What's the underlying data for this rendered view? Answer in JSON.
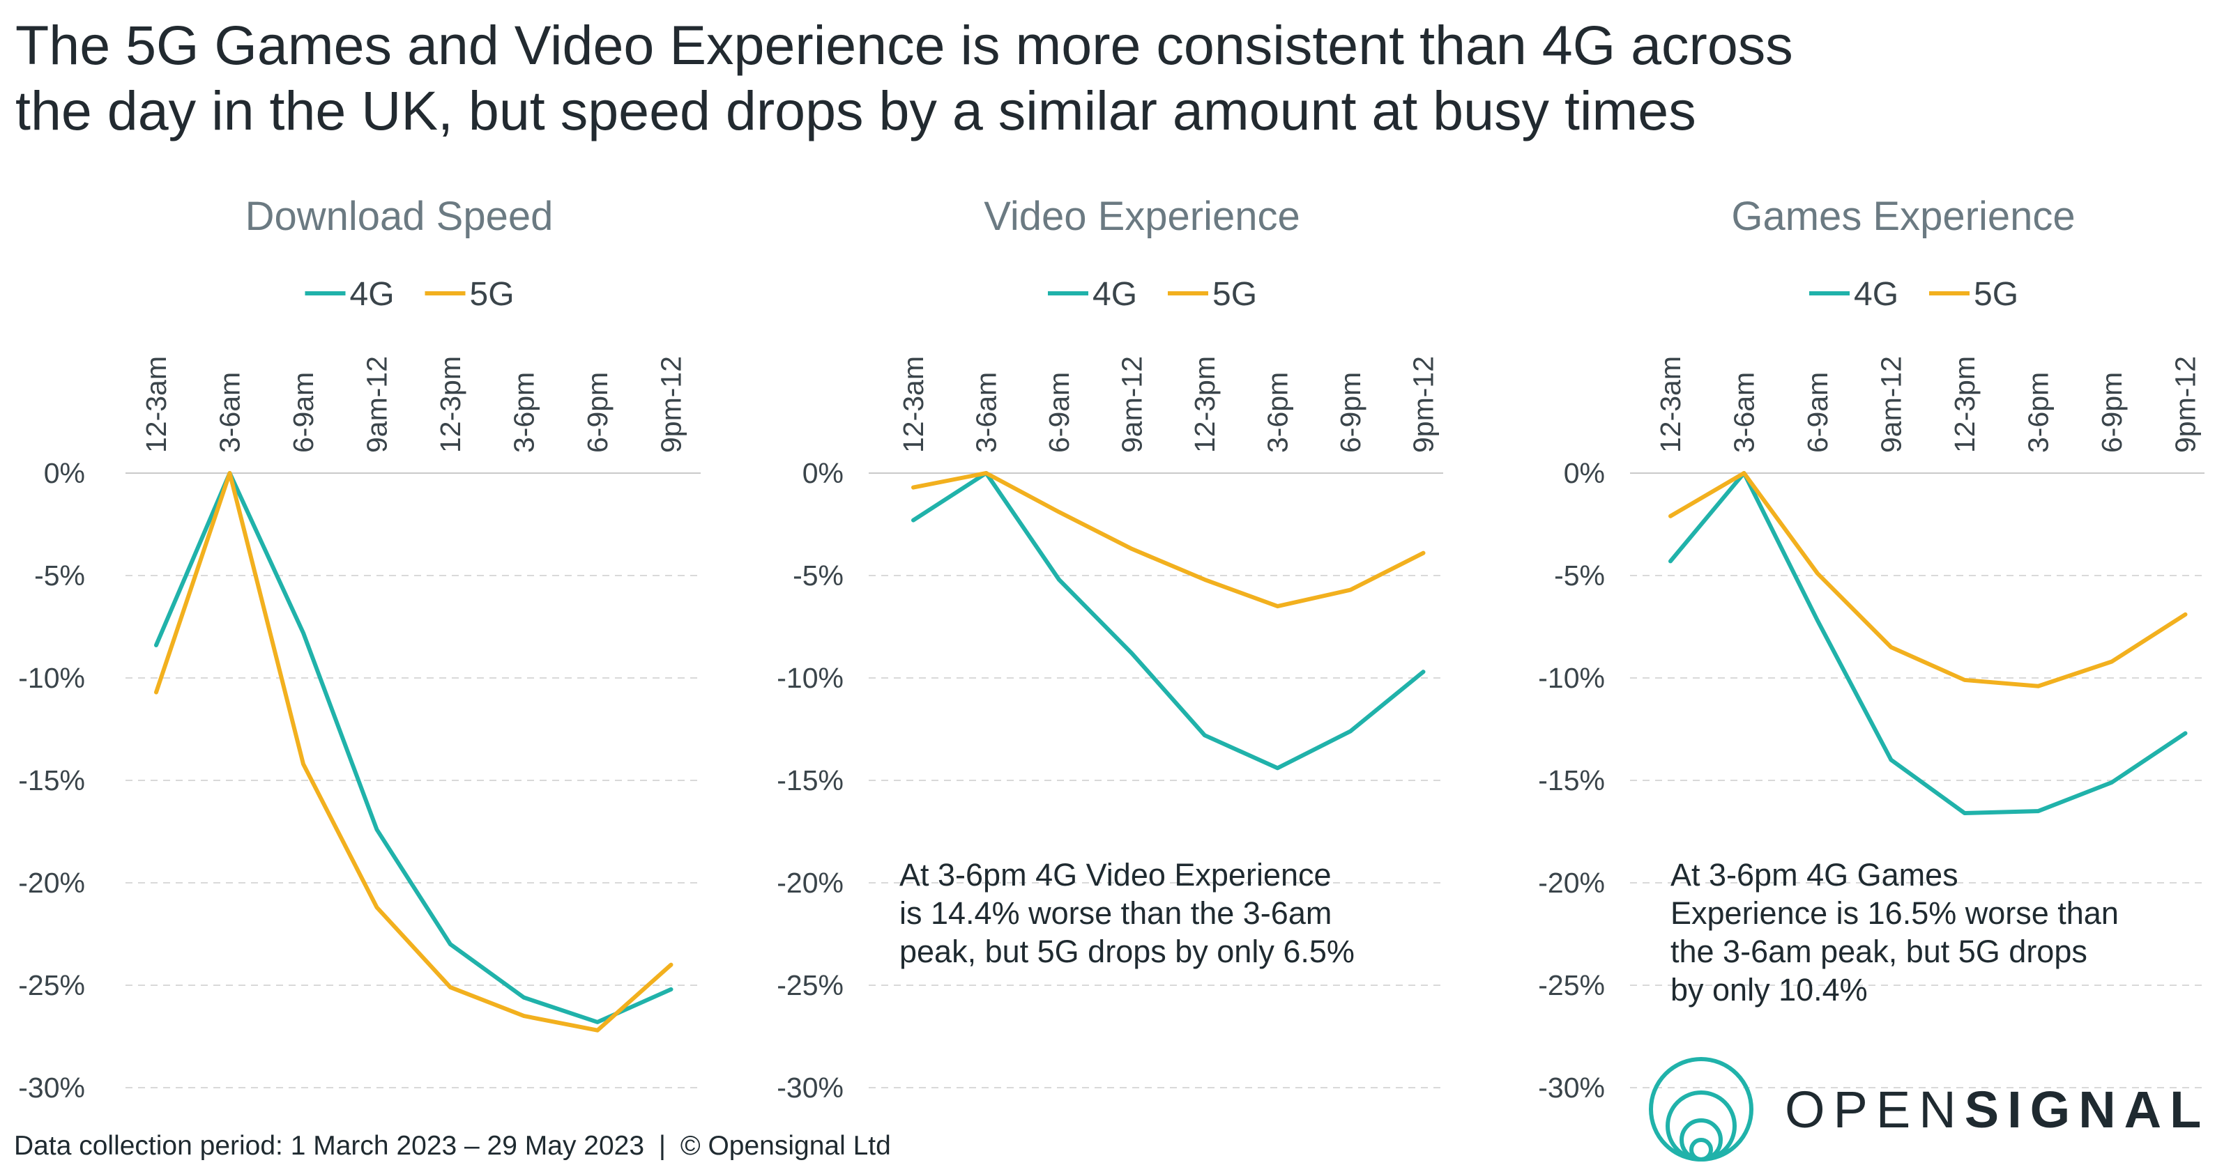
{
  "title_line1": "The 5G Games and Video Experience is more consistent than 4G across",
  "title_line2": "the day in the UK, but speed drops by a similar amount at busy times",
  "colors": {
    "4G": "#20b2aa",
    "5G": "#f2b01e",
    "grid": "#d9d9d9"
  },
  "annotations": {
    "video_lines": [
      "At 3-6pm 4G Video Experience",
      "is 14.4% worse than the 3-6am",
      "peak, but 5G drops by only 6.5%"
    ],
    "games_lines": [
      "At 3-6pm 4G Games",
      "Experience is 16.5% worse than",
      "the 3-6am peak, but 5G drops",
      "by only 10.4%"
    ]
  },
  "footer": {
    "period": "Data collection period: 1 March 2023 – 29 May 2023",
    "separator": "|",
    "copyright": "© Opensignal Ltd"
  },
  "brand": {
    "light": "OPEN",
    "bold": "SIGNAL"
  },
  "chart_data": [
    {
      "type": "line",
      "title": "Download Speed",
      "categories": [
        "12-3am",
        "3-6am",
        "6-9am",
        "9am-12",
        "12-3pm",
        "3-6pm",
        "6-9pm",
        "9pm-12"
      ],
      "series": [
        {
          "name": "4G",
          "values": [
            -8.4,
            0,
            -7.8,
            -17.4,
            -23.0,
            -25.6,
            -26.8,
            -25.2
          ]
        },
        {
          "name": "5G",
          "values": [
            -10.7,
            0,
            -14.2,
            -21.2,
            -25.1,
            -26.5,
            -27.2,
            -24.0
          ]
        }
      ],
      "ylim": [
        -30,
        0
      ],
      "yticks": [
        0,
        -5,
        -10,
        -15,
        -20,
        -25,
        -30
      ],
      "ytick_labels": [
        "0%",
        "-5%",
        "-10%",
        "-15%",
        "-20%",
        "-25%",
        "-30%"
      ],
      "legend": "top-center",
      "grid": true
    },
    {
      "type": "line",
      "title": "Video Experience",
      "categories": [
        "12-3am",
        "3-6am",
        "6-9am",
        "9am-12",
        "12-3pm",
        "3-6pm",
        "6-9pm",
        "9pm-12"
      ],
      "series": [
        {
          "name": "4G",
          "values": [
            -2.3,
            0,
            -5.2,
            -8.8,
            -12.8,
            -14.4,
            -12.6,
            -9.7
          ]
        },
        {
          "name": "5G",
          "values": [
            -0.7,
            0,
            -1.9,
            -3.7,
            -5.2,
            -6.5,
            -5.7,
            -3.9
          ]
        }
      ],
      "ylim": [
        -30,
        0
      ],
      "yticks": [
        0,
        -5,
        -10,
        -15,
        -20,
        -25,
        -30
      ],
      "ytick_labels": [
        "0%",
        "-5%",
        "-10%",
        "-15%",
        "-20%",
        "-25%",
        "-30%"
      ],
      "legend": "top-center",
      "grid": true
    },
    {
      "type": "line",
      "title": "Games Experience",
      "categories": [
        "12-3am",
        "3-6am",
        "6-9am",
        "9am-12",
        "12-3pm",
        "3-6pm",
        "6-9pm",
        "9pm-12"
      ],
      "series": [
        {
          "name": "4G",
          "values": [
            -4.3,
            0,
            -7.2,
            -14.0,
            -16.6,
            -16.5,
            -15.1,
            -12.7
          ]
        },
        {
          "name": "5G",
          "values": [
            -2.1,
            0,
            -4.9,
            -8.5,
            -10.1,
            -10.4,
            -9.2,
            -6.9
          ]
        }
      ],
      "ylim": [
        -30,
        0
      ],
      "yticks": [
        0,
        -5,
        -10,
        -15,
        -20,
        -25,
        -30
      ],
      "ytick_labels": [
        "0%",
        "-5%",
        "-10%",
        "-15%",
        "-20%",
        "-25%",
        "-30%"
      ],
      "legend": "top-center",
      "grid": true
    }
  ]
}
